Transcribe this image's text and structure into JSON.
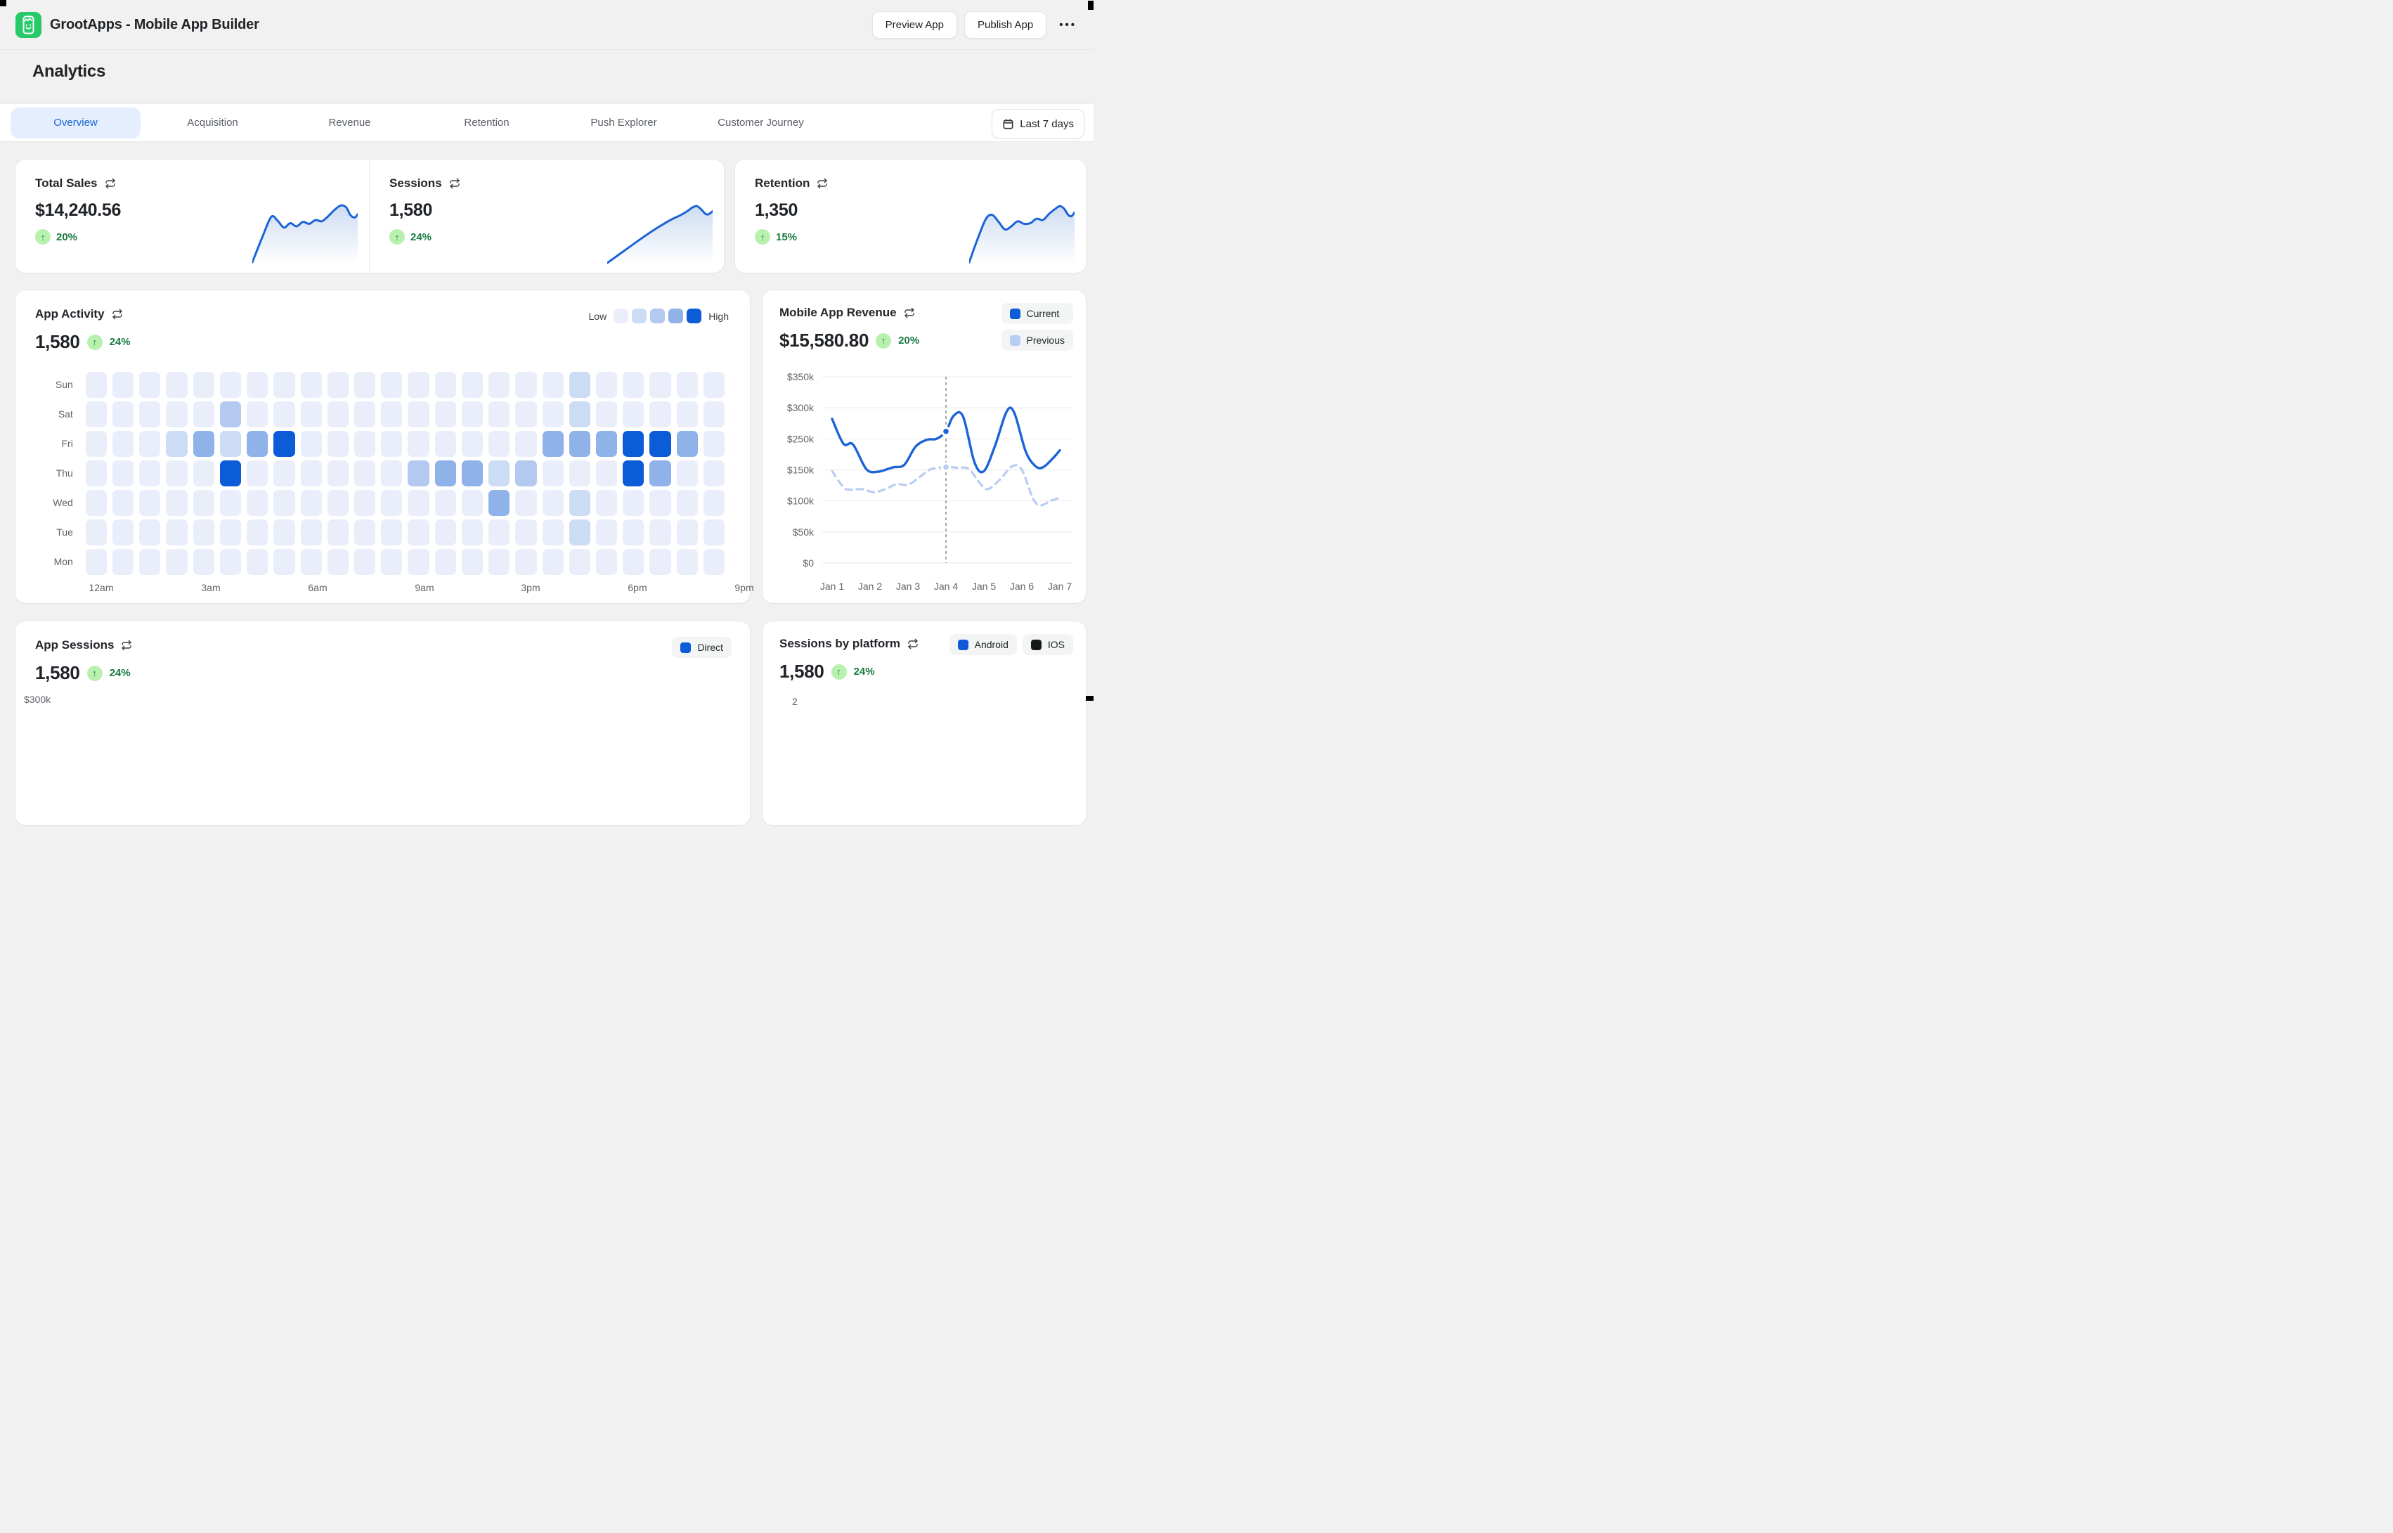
{
  "window": {
    "app_title": "GrootApps - Mobile App Builder",
    "preview_button": "Preview App",
    "publish_button": "Publish App",
    "more_menu": "•••"
  },
  "page": {
    "title": "Analytics"
  },
  "tabs": {
    "items": [
      {
        "label": "Overview",
        "active": true
      },
      {
        "label": "Acquisition",
        "active": false
      },
      {
        "label": "Revenue",
        "active": false
      },
      {
        "label": "Retention",
        "active": false
      },
      {
        "label": "Push Explorer",
        "active": false
      },
      {
        "label": "Customer Journey",
        "active": false
      }
    ],
    "date_range": "Last 7 days"
  },
  "colors": {
    "accent_blue": "#0b5cd6",
    "line_blue": "#1b63d6",
    "previous_blue": "#b9ccf2",
    "green_text": "#177a3f",
    "green_bg": "#b8f1ae",
    "ios_black": "#17181a"
  },
  "stats": [
    {
      "title": "Total Sales",
      "value": "$14,240.56",
      "change": "20%"
    },
    {
      "title": "Sessions",
      "value": "1,580",
      "change": "24%"
    },
    {
      "title": "Retention",
      "value": "1,350",
      "change": "15%"
    }
  ],
  "app_activity": {
    "title": "App Activity",
    "value": "1,580",
    "change": "24%",
    "legend_low": "Low",
    "legend_high": "High"
  },
  "revenue": {
    "title": "Mobile App Revenue",
    "value": "$15,580.80",
    "change": "20%",
    "legend": [
      {
        "label": "Current",
        "color": "#0b5cd6"
      },
      {
        "label": "Previous",
        "color": "#b9ccf2"
      }
    ]
  },
  "app_sessions": {
    "title": "App Sessions",
    "value": "1,580",
    "change": "24%",
    "legend": [
      {
        "label": "Direct",
        "color": "#0b5cd6"
      }
    ],
    "partial_y_label": "$300k"
  },
  "sessions_by_platform": {
    "title": "Sessions by platform",
    "value": "1,580",
    "change": "24%",
    "legend": [
      {
        "label": "Android",
        "color": "#1159d6"
      },
      {
        "label": "IOS",
        "color": "#17181a"
      }
    ],
    "partial_y_label": "2"
  },
  "chart_data": [
    {
      "id": "sparkline-total-sales",
      "type": "area",
      "title": "Total Sales trend sparkline",
      "points": [
        [
          0,
          97
        ],
        [
          10,
          55
        ],
        [
          18,
          25
        ],
        [
          24,
          31
        ],
        [
          30,
          42
        ],
        [
          36,
          35
        ],
        [
          42,
          40
        ],
        [
          48,
          33
        ],
        [
          54,
          36
        ],
        [
          60,
          30
        ],
        [
          66,
          32
        ],
        [
          72,
          24
        ],
        [
          78,
          14
        ],
        [
          84,
          7
        ],
        [
          89,
          10
        ],
        [
          93,
          22
        ],
        [
          97,
          26
        ],
        [
          100,
          21
        ]
      ]
    },
    {
      "id": "sparkline-sessions",
      "type": "area",
      "title": "Sessions trend sparkline",
      "points": [
        [
          0,
          98
        ],
        [
          15,
          80
        ],
        [
          30,
          62
        ],
        [
          45,
          45
        ],
        [
          60,
          30
        ],
        [
          70,
          22
        ],
        [
          76,
          16
        ],
        [
          81,
          10
        ],
        [
          85,
          8
        ],
        [
          89,
          13
        ],
        [
          93,
          20
        ],
        [
          96,
          21
        ],
        [
          100,
          16
        ]
      ]
    },
    {
      "id": "sparkline-retention",
      "type": "area",
      "title": "Retention trend sparkline",
      "points": [
        [
          0,
          97
        ],
        [
          8,
          60
        ],
        [
          16,
          28
        ],
        [
          22,
          22
        ],
        [
          28,
          33
        ],
        [
          34,
          45
        ],
        [
          40,
          40
        ],
        [
          46,
          32
        ],
        [
          52,
          36
        ],
        [
          58,
          35
        ],
        [
          64,
          28
        ],
        [
          70,
          30
        ],
        [
          76,
          20
        ],
        [
          82,
          12
        ],
        [
          86,
          8
        ],
        [
          90,
          12
        ],
        [
          94,
          22
        ],
        [
          97,
          24
        ],
        [
          100,
          18
        ]
      ]
    },
    {
      "id": "app-activity-heatmap",
      "type": "heatmap",
      "title": "App Activity by day and hour",
      "rows": [
        "Sun",
        "Sat",
        "Fri",
        "Thu",
        "Wed",
        "Tue",
        "Mon"
      ],
      "time_labels": [
        "12am",
        "3am",
        "6am",
        "9am",
        "3pm",
        "6pm",
        "9pm"
      ],
      "time_label_centers": [
        19,
        175,
        327,
        479,
        630,
        782,
        934
      ],
      "palette": [
        "#e9eefa",
        "#ccdcf5",
        "#b3c9ef",
        "#8fb2e8",
        "#0b5cd6"
      ],
      "cells": [
        [
          0,
          0,
          0,
          0,
          0,
          0,
          0,
          0,
          0,
          0,
          0,
          0,
          0,
          0,
          0,
          0,
          0,
          0,
          1,
          0,
          0,
          0,
          0,
          0
        ],
        [
          0,
          0,
          0,
          0,
          0,
          2,
          0,
          0,
          0,
          0,
          0,
          0,
          0,
          0,
          0,
          0,
          0,
          0,
          1,
          0,
          0,
          0,
          0,
          0
        ],
        [
          0,
          0,
          0,
          1,
          3,
          1,
          3,
          4,
          0,
          0,
          0,
          0,
          0,
          0,
          0,
          0,
          0,
          3,
          3,
          3,
          4,
          4,
          3,
          0
        ],
        [
          0,
          0,
          0,
          0,
          0,
          4,
          0,
          0,
          0,
          0,
          0,
          0,
          2,
          3,
          3,
          1,
          2,
          0,
          0,
          0,
          4,
          3,
          0,
          0
        ],
        [
          0,
          0,
          0,
          0,
          0,
          0,
          0,
          0,
          0,
          0,
          0,
          0,
          0,
          0,
          0,
          3,
          0,
          0,
          1,
          0,
          0,
          0,
          0,
          0
        ],
        [
          0,
          0,
          0,
          0,
          0,
          0,
          0,
          0,
          0,
          0,
          0,
          0,
          0,
          0,
          0,
          0,
          0,
          0,
          1,
          0,
          0,
          0,
          0,
          0
        ],
        [
          0,
          0,
          0,
          0,
          0,
          0,
          0,
          0,
          0,
          0,
          0,
          0,
          0,
          0,
          0,
          0,
          0,
          0,
          0,
          0,
          0,
          0,
          0,
          0
        ]
      ]
    },
    {
      "id": "mobile-app-revenue",
      "type": "line",
      "title": "Mobile App Revenue",
      "x_labels": [
        "Jan 1",
        "Jan 2",
        "Jan 3",
        "Jan 4",
        "Jan 5",
        "Jan 6",
        "Jan 7"
      ],
      "y_tick_labels": [
        "$350k",
        "$300k",
        "$250k",
        "$150k",
        "$100k",
        "$50k",
        "$0"
      ],
      "y_ticks_k": [
        350,
        300,
        250,
        150,
        100,
        50,
        0
      ],
      "grid": true,
      "legend_position": "top-right",
      "highlight_day": 4,
      "series": [
        {
          "name": "Current",
          "style": "solid",
          "color": "#1b63d6",
          "points": [
            [
              1,
              282
            ],
            [
              1.3,
              234
            ],
            [
              1.55,
              232
            ],
            [
              1.9,
              153
            ],
            [
              2.2,
              147
            ],
            [
              2.6,
              158
            ],
            [
              2.9,
              166
            ],
            [
              3.2,
              225
            ],
            [
              3.5,
              247
            ],
            [
              3.75,
              250
            ],
            [
              4,
              262
            ],
            [
              4.2,
              287
            ],
            [
              4.45,
              286
            ],
            [
              4.75,
              175
            ],
            [
              5,
              148
            ],
            [
              5.3,
              230
            ],
            [
              5.6,
              294
            ],
            [
              5.8,
              292
            ],
            [
              6.1,
              210
            ],
            [
              6.35,
              163
            ],
            [
              6.55,
              158
            ],
            [
              6.8,
              185
            ],
            [
              7,
              213
            ]
          ]
        },
        {
          "name": "Previous",
          "style": "dashed",
          "color": "#b9ccf2",
          "points": [
            [
              1,
              148
            ],
            [
              1.3,
              122
            ],
            [
              1.5,
              118
            ],
            [
              1.8,
              119
            ],
            [
              2.1,
              114
            ],
            [
              2.4,
              119
            ],
            [
              2.7,
              127
            ],
            [
              3,
              126
            ],
            [
              3.3,
              138
            ],
            [
              3.6,
              152
            ],
            [
              4,
              159
            ],
            [
              4.3,
              157
            ],
            [
              4.6,
              153
            ],
            [
              4.9,
              128
            ],
            [
              5.1,
              119
            ],
            [
              5.4,
              133
            ],
            [
              5.75,
              162
            ],
            [
              6,
              150
            ],
            [
              6.3,
              103
            ],
            [
              6.5,
              93
            ],
            [
              6.75,
              100
            ],
            [
              7,
              105
            ]
          ]
        }
      ],
      "markers": [
        {
          "series": "Current",
          "day": 4,
          "value_k": 262
        },
        {
          "series": "Previous",
          "day": 4,
          "value_k": 159
        }
      ]
    }
  ]
}
